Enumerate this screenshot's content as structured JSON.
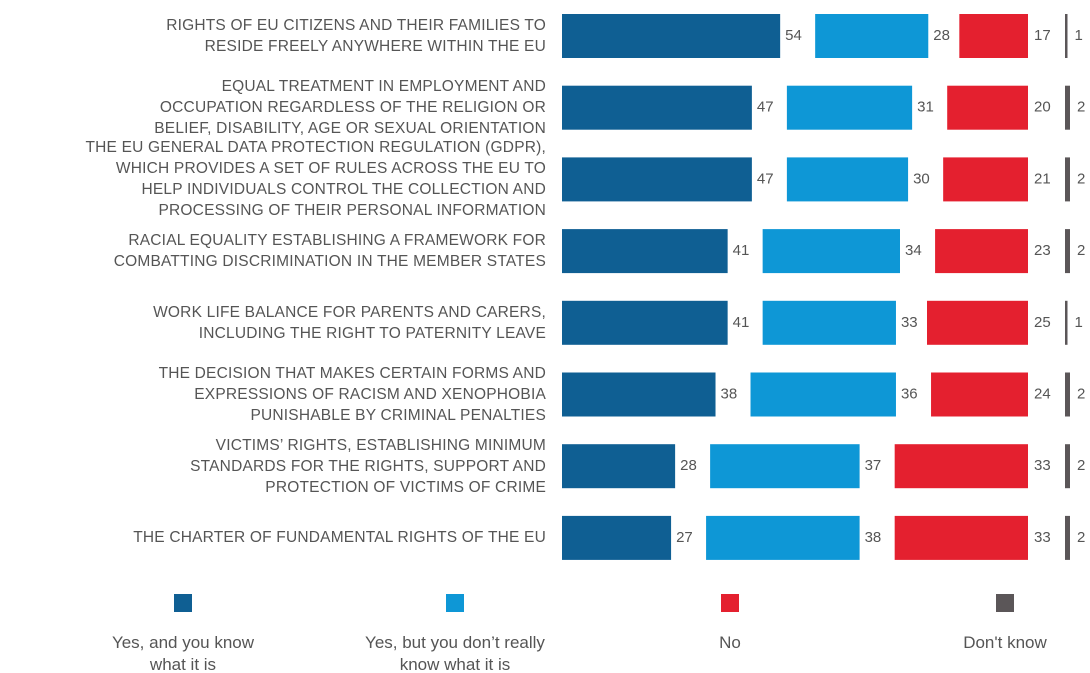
{
  "chart_data": {
    "type": "bar",
    "categories": [
      "RIGHTS OF EU CITIZENS AND THEIR FAMILIES TO\nRESIDE FREELY ANYWHERE WITHIN THE EU",
      "EQUAL TREATMENT IN EMPLOYMENT AND\nOCCUPATION REGARDLESS OF THE RELIGION OR\nBELIEF, DISABILITY, AGE OR SEXUAL ORIENTATION",
      "THE EU GENERAL DATA PROTECTION REGULATION (GDPR),\nWHICH PROVIDES A SET OF RULES ACROSS THE EU TO\nHELP INDIVIDUALS CONTROL THE COLLECTION AND\nPROCESSING OF THEIR PERSONAL INFORMATION",
      "RACIAL EQUALITY ESTABLISHING A FRAMEWORK FOR\nCOMBATTING DISCRIMINATION IN THE MEMBER STATES",
      "WORK LIFE BALANCE FOR PARENTS AND CARERS,\nINCLUDING THE RIGHT TO PATERNITY LEAVE",
      "THE DECISION THAT MAKES CERTAIN FORMS AND\nEXPRESSIONS OF RACISM AND XENOPHOBIA\nPUNISHABLE BY CRIMINAL PENALTIES",
      "VICTIMS’ RIGHTS, ESTABLISHING MINIMUM\nSTANDARDS FOR THE RIGHTS, SUPPORT AND\nPROTECTION OF VICTIMS OF CRIME",
      "THE CHARTER OF FUNDAMENTAL RIGHTS OF THE EU"
    ],
    "series": [
      {
        "name": "Yes, and you know\nwhat it is",
        "color": "#0f5f93",
        "values": [
          54,
          47,
          47,
          41,
          41,
          38,
          28,
          27
        ]
      },
      {
        "name": "Yes, but you don’t really\nknow what it is",
        "color": "#0e97d6",
        "values": [
          28,
          31,
          30,
          34,
          33,
          36,
          37,
          38
        ]
      },
      {
        "name": "No",
        "color": "#e4202f",
        "values": [
          17,
          20,
          21,
          23,
          25,
          24,
          33,
          33
        ]
      },
      {
        "name": "Don't know",
        "color": "#5b5658",
        "values": [
          1,
          2,
          2,
          2,
          1,
          2,
          2,
          2
        ]
      }
    ]
  }
}
